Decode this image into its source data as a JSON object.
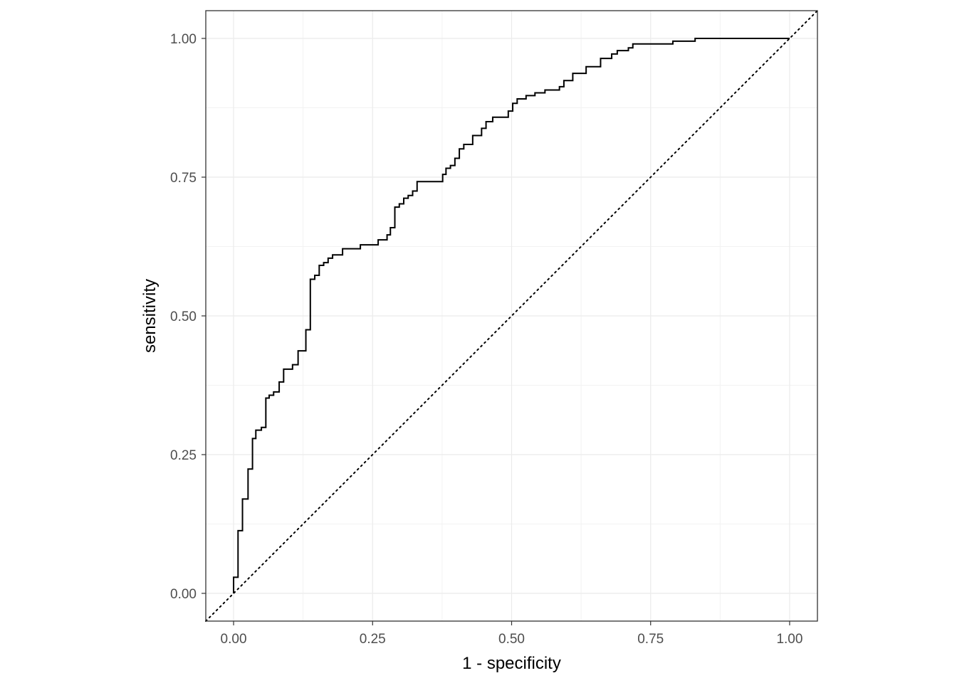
{
  "chart_data": {
    "type": "line",
    "title": "",
    "xlabel": "1 - specificity",
    "ylabel": "sensitivity",
    "xlim": [
      -0.05,
      1.05
    ],
    "ylim": [
      -0.05,
      1.05
    ],
    "x_ticks": [
      0.0,
      0.25,
      0.5,
      0.75,
      1.0
    ],
    "y_ticks": [
      0.0,
      0.25,
      0.5,
      0.75,
      1.0
    ],
    "x_tick_labels": [
      "0.00",
      "0.25",
      "0.50",
      "0.75",
      "1.00"
    ],
    "y_tick_labels": [
      "0.00",
      "0.25",
      "0.50",
      "0.75",
      "1.00"
    ],
    "grid": true,
    "legend": "none",
    "series": [
      {
        "style": "step",
        "color": "#000000",
        "points": [
          [
            0.0,
            0.0
          ],
          [
            0.0,
            0.029
          ],
          [
            0.008,
            0.029
          ],
          [
            0.008,
            0.113
          ],
          [
            0.016,
            0.113
          ],
          [
            0.016,
            0.17
          ],
          [
            0.026,
            0.17
          ],
          [
            0.026,
            0.224
          ],
          [
            0.034,
            0.224
          ],
          [
            0.034,
            0.279
          ],
          [
            0.04,
            0.279
          ],
          [
            0.04,
            0.294
          ],
          [
            0.05,
            0.294
          ],
          [
            0.05,
            0.299
          ],
          [
            0.058,
            0.299
          ],
          [
            0.058,
            0.352
          ],
          [
            0.064,
            0.352
          ],
          [
            0.064,
            0.357
          ],
          [
            0.072,
            0.357
          ],
          [
            0.072,
            0.363
          ],
          [
            0.082,
            0.363
          ],
          [
            0.082,
            0.381
          ],
          [
            0.09,
            0.381
          ],
          [
            0.09,
            0.404
          ],
          [
            0.106,
            0.404
          ],
          [
            0.106,
            0.412
          ],
          [
            0.116,
            0.412
          ],
          [
            0.116,
            0.437
          ],
          [
            0.13,
            0.437
          ],
          [
            0.13,
            0.475
          ],
          [
            0.138,
            0.475
          ],
          [
            0.138,
            0.566
          ],
          [
            0.146,
            0.566
          ],
          [
            0.146,
            0.573
          ],
          [
            0.154,
            0.573
          ],
          [
            0.154,
            0.591
          ],
          [
            0.162,
            0.591
          ],
          [
            0.162,
            0.596
          ],
          [
            0.17,
            0.596
          ],
          [
            0.17,
            0.604
          ],
          [
            0.178,
            0.604
          ],
          [
            0.178,
            0.61
          ],
          [
            0.196,
            0.61
          ],
          [
            0.196,
            0.621
          ],
          [
            0.228,
            0.621
          ],
          [
            0.228,
            0.628
          ],
          [
            0.26,
            0.628
          ],
          [
            0.26,
            0.637
          ],
          [
            0.276,
            0.637
          ],
          [
            0.276,
            0.646
          ],
          [
            0.282,
            0.646
          ],
          [
            0.282,
            0.659
          ],
          [
            0.29,
            0.659
          ],
          [
            0.29,
            0.696
          ],
          [
            0.298,
            0.696
          ],
          [
            0.298,
            0.702
          ],
          [
            0.306,
            0.702
          ],
          [
            0.306,
            0.712
          ],
          [
            0.314,
            0.712
          ],
          [
            0.314,
            0.717
          ],
          [
            0.322,
            0.717
          ],
          [
            0.322,
            0.725
          ],
          [
            0.33,
            0.725
          ],
          [
            0.33,
            0.742
          ],
          [
            0.376,
            0.742
          ],
          [
            0.376,
            0.755
          ],
          [
            0.382,
            0.755
          ],
          [
            0.382,
            0.766
          ],
          [
            0.39,
            0.766
          ],
          [
            0.39,
            0.771
          ],
          [
            0.398,
            0.771
          ],
          [
            0.398,
            0.784
          ],
          [
            0.406,
            0.784
          ],
          [
            0.406,
            0.801
          ],
          [
            0.414,
            0.801
          ],
          [
            0.414,
            0.809
          ],
          [
            0.43,
            0.809
          ],
          [
            0.43,
            0.825
          ],
          [
            0.446,
            0.825
          ],
          [
            0.446,
            0.838
          ],
          [
            0.454,
            0.838
          ],
          [
            0.454,
            0.85
          ],
          [
            0.466,
            0.85
          ],
          [
            0.466,
            0.858
          ],
          [
            0.494,
            0.858
          ],
          [
            0.494,
            0.869
          ],
          [
            0.502,
            0.869
          ],
          [
            0.502,
            0.883
          ],
          [
            0.51,
            0.883
          ],
          [
            0.51,
            0.891
          ],
          [
            0.526,
            0.891
          ],
          [
            0.526,
            0.897
          ],
          [
            0.542,
            0.897
          ],
          [
            0.542,
            0.902
          ],
          [
            0.56,
            0.902
          ],
          [
            0.56,
            0.907
          ],
          [
            0.586,
            0.907
          ],
          [
            0.586,
            0.913
          ],
          [
            0.594,
            0.913
          ],
          [
            0.594,
            0.924
          ],
          [
            0.61,
            0.924
          ],
          [
            0.61,
            0.937
          ],
          [
            0.634,
            0.937
          ],
          [
            0.634,
            0.949
          ],
          [
            0.66,
            0.949
          ],
          [
            0.66,
            0.964
          ],
          [
            0.68,
            0.964
          ],
          [
            0.68,
            0.972
          ],
          [
            0.69,
            0.972
          ],
          [
            0.69,
            0.978
          ],
          [
            0.71,
            0.978
          ],
          [
            0.71,
            0.983
          ],
          [
            0.718,
            0.983
          ],
          [
            0.718,
            0.99
          ],
          [
            0.79,
            0.99
          ],
          [
            0.79,
            0.995
          ],
          [
            0.83,
            0.995
          ],
          [
            0.83,
            1.0
          ],
          [
            1.0,
            1.0
          ]
        ]
      },
      {
        "style": "dotted",
        "color": "#000000",
        "points": [
          [
            -0.05,
            -0.05
          ],
          [
            1.05,
            1.05
          ]
        ]
      }
    ]
  }
}
